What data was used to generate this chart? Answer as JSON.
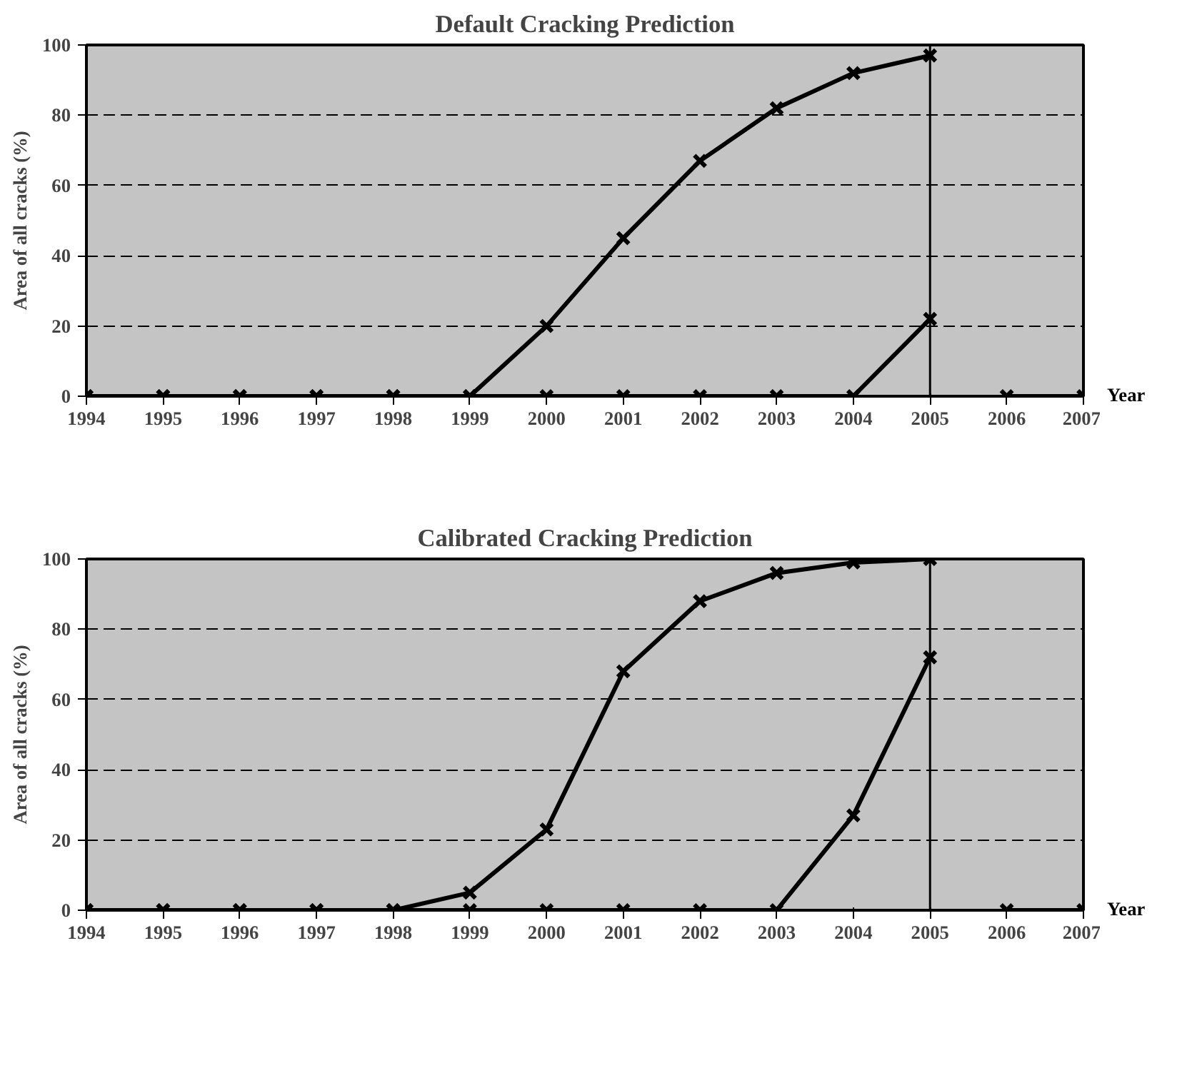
{
  "chart_data": [
    {
      "type": "line",
      "title": "Default Cracking Prediction",
      "ylabel": "Area of all cracks (%)",
      "xlabel": "Year",
      "x": [
        1994,
        1995,
        1996,
        1997,
        1998,
        1999,
        2000,
        2001,
        2002,
        2003,
        2004,
        2005,
        2006,
        2007
      ],
      "series": [
        {
          "color": "#000000",
          "values": [
            0,
            0,
            0,
            0,
            0,
            0,
            20,
            45,
            67,
            82,
            92,
            97,
            null,
            null
          ]
        },
        {
          "color": "#000000",
          "values": [
            0,
            0,
            0,
            0,
            0,
            0,
            0,
            0,
            0,
            0,
            0,
            22,
            null,
            null
          ]
        },
        {
          "color": "#000000",
          "values": [
            null,
            null,
            null,
            null,
            null,
            null,
            null,
            null,
            null,
            null,
            null,
            null,
            0,
            0
          ]
        }
      ],
      "xlim": [
        1994,
        2007
      ],
      "xticks": [
        1994,
        1995,
        1996,
        1997,
        1998,
        1999,
        2000,
        2001,
        2002,
        2003,
        2004,
        2005,
        2006,
        2007
      ],
      "ylim": [
        0,
        100
      ],
      "yticks": [
        0,
        20,
        40,
        60,
        80,
        100
      ],
      "grid": "y",
      "marker": "cross",
      "line_style": "solid",
      "ref_lines": [
        {
          "axis": "x",
          "value": 2005,
          "color": "#000000"
        }
      ]
    },
    {
      "type": "line",
      "title": "Calibrated Cracking Prediction",
      "ylabel": "Area of all cracks (%)",
      "xlabel": "Year",
      "x": [
        1994,
        1995,
        1996,
        1997,
        1998,
        1999,
        2000,
        2001,
        2002,
        2003,
        2004,
        2005,
        2006,
        2007
      ],
      "series": [
        {
          "color": "#000000",
          "values": [
            0,
            0,
            0,
            0,
            0,
            5,
            23,
            68,
            88,
            96,
            99,
            100,
            null,
            null
          ]
        },
        {
          "color": "#000000",
          "values": [
            0,
            0,
            0,
            0,
            0,
            0,
            0,
            0,
            0,
            0,
            27,
            72,
            null,
            null
          ]
        },
        {
          "color": "#000000",
          "values": [
            null,
            null,
            null,
            null,
            null,
            null,
            null,
            null,
            null,
            null,
            null,
            null,
            0,
            0
          ]
        }
      ],
      "xlim": [
        1994,
        2007
      ],
      "xticks": [
        1994,
        1995,
        1996,
        1997,
        1998,
        1999,
        2000,
        2001,
        2002,
        2003,
        2004,
        2005,
        2006,
        2007
      ],
      "ylim": [
        0,
        100
      ],
      "yticks": [
        0,
        20,
        40,
        60,
        80,
        100
      ],
      "grid": "y",
      "marker": "cross",
      "line_style": "solid",
      "ref_lines": [
        {
          "axis": "x",
          "value": 2005,
          "color": "#000000"
        }
      ]
    }
  ]
}
